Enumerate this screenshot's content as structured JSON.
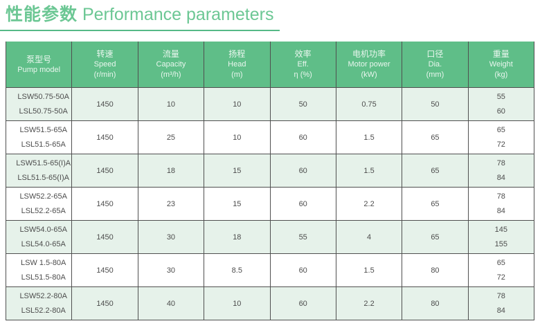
{
  "page": {
    "title_cn": "性能参数",
    "title_en": "Performance parameters",
    "accent_color": "#5fbe88",
    "title_color": "#6cc794",
    "row_tint_color": "#e6f2ea",
    "border_color": "#4f4f4f"
  },
  "table": {
    "headers": [
      {
        "cn": "泵型号",
        "en": "Pump model",
        "unit": ""
      },
      {
        "cn": "转速",
        "en": "Speed",
        "unit": "(r/min)"
      },
      {
        "cn": "流量",
        "en": "Capacity",
        "unit": "(m³/h)"
      },
      {
        "cn": "扬程",
        "en": "Head",
        "unit": "(m)"
      },
      {
        "cn": "效率",
        "en": "Eff.",
        "unit": "η (%)"
      },
      {
        "cn": "电机功率",
        "en": "Motor power",
        "unit": "(kW)"
      },
      {
        "cn": "口径",
        "en": "Dia.",
        "unit": "(mm)"
      },
      {
        "cn": "重量",
        "en": "Weight",
        "unit": "(kg)"
      }
    ],
    "rows": [
      {
        "model_1": "LSW50.75-50A",
        "model_2": "LSL50.75-50A",
        "speed": "1450",
        "capacity": "10",
        "head": "10",
        "eff": "50",
        "power": "0.75",
        "dia": "50",
        "weight_1": "55",
        "weight_2": "60"
      },
      {
        "model_1": "LSW51.5-65A",
        "model_2": "LSL51.5-65A",
        "speed": "1450",
        "capacity": "25",
        "head": "10",
        "eff": "60",
        "power": "1.5",
        "dia": "65",
        "weight_1": "65",
        "weight_2": "72"
      },
      {
        "model_1": "LSW51.5-65(I)A",
        "model_2": "LSL51.5-65(I)A",
        "speed": "1450",
        "capacity": "18",
        "head": "15",
        "eff": "60",
        "power": "1.5",
        "dia": "65",
        "weight_1": "78",
        "weight_2": "84"
      },
      {
        "model_1": "LSW52.2-65A",
        "model_2": "LSL52.2-65A",
        "speed": "1450",
        "capacity": "23",
        "head": "15",
        "eff": "60",
        "power": "2.2",
        "dia": "65",
        "weight_1": "78",
        "weight_2": "84"
      },
      {
        "model_1": "LSW54.0-65A",
        "model_2": "LSL54.0-65A",
        "speed": "1450",
        "capacity": "30",
        "head": "18",
        "eff": "55",
        "power": "4",
        "dia": "65",
        "weight_1": "145",
        "weight_2": "155"
      },
      {
        "model_1": "LSW 1.5-80A",
        "model_2": "LSL51.5-80A",
        "speed": "1450",
        "capacity": "30",
        "head": "8.5",
        "eff": "60",
        "power": "1.5",
        "dia": "80",
        "weight_1": "65",
        "weight_2": "72"
      },
      {
        "model_1": "LSW52.2-80A",
        "model_2": "LSL52.2-80A",
        "speed": "1450",
        "capacity": "40",
        "head": "10",
        "eff": "60",
        "power": "2.2",
        "dia": "80",
        "weight_1": "78",
        "weight_2": "84"
      }
    ]
  }
}
